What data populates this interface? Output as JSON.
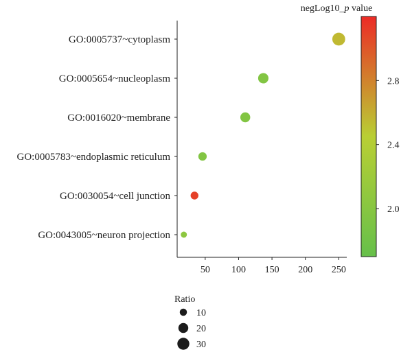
{
  "chart_data": {
    "type": "scatter",
    "categories": [
      "GO:0005737~cytoplasm",
      "GO:0005654~nucleoplasm",
      "GO:0016020~membrane",
      "GO:0005783~endoplasmic reticulum",
      "GO:0030054~cell junction",
      "GO:0043005~neuron projection"
    ],
    "x": [
      250,
      137,
      110,
      46,
      34,
      18
    ],
    "ratio": [
      35,
      22,
      20,
      14,
      12,
      7
    ],
    "negLog10_p": [
      2.55,
      1.95,
      1.95,
      1.95,
      3.1,
      2.05
    ],
    "xticks": [
      50,
      100,
      150,
      200,
      250
    ],
    "xlim": [
      8,
      262
    ],
    "color_label_prefix": "negLog10_",
    "color_label_italic": "p",
    "color_label_suffix": " value",
    "color_ticks": [
      2.0,
      2.4,
      2.8
    ],
    "color_range": [
      1.7,
      3.2
    ],
    "color_low": "#66c04a",
    "color_mid": "#b9cf34",
    "color_high": "#ec2b26",
    "size_legend_title": "Ratio",
    "size_legend": [
      10,
      20,
      30
    ]
  }
}
